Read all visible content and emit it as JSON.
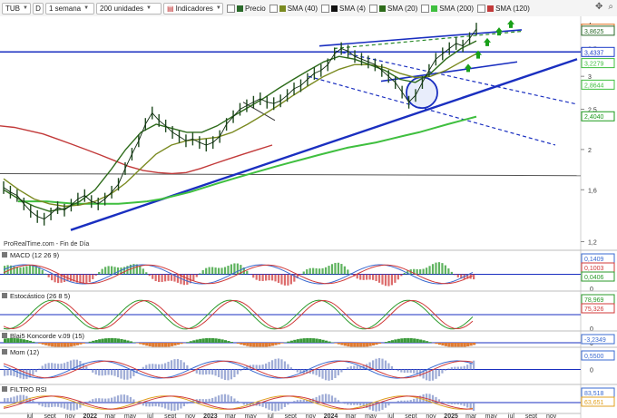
{
  "toolbar": {
    "ticker": "TUB",
    "timeframe_letter": "D",
    "period": "1 semana",
    "units": "200 unidades",
    "indicators": "Indicadores",
    "legend": [
      {
        "label": "Precio",
        "color": "#2a6a2a"
      },
      {
        "label": "SMA (40)",
        "color": "#7a8a20"
      },
      {
        "label": "SMA (4)",
        "color": "#111111"
      },
      {
        "label": "SMA (20)",
        "color": "#2d6b1a"
      },
      {
        "label": "SMA (200)",
        "color": "#3fbf3f"
      },
      {
        "label": "SMA (120)",
        "color": "#c23a3a"
      }
    ]
  },
  "chart_data": {
    "type": "line",
    "source_label": "ProRealTime.com - Fin de Día",
    "price_axis_ticks": [
      "4",
      "3,5",
      "3",
      "2,5",
      "2",
      "1,6",
      "1,2"
    ],
    "price_badges": [
      {
        "label": "3,905",
        "value": 3.905,
        "color": "#e07020"
      },
      {
        "label": "3,8625",
        "value": 3.8625,
        "color": "#2a6a2a"
      },
      {
        "label": "3,4337",
        "value": 3.4337,
        "color": "#1a3ac8"
      },
      {
        "label": "3,2279",
        "value": 3.2279,
        "color": "#3fbf3f"
      },
      {
        "label": "2,8644",
        "value": 2.8644,
        "color": "#3fbf3f"
      },
      {
        "label": "2,4040",
        "value": 2.404,
        "color": "#1a9a1a"
      }
    ],
    "x_axis_labels": [
      "jul",
      "sept",
      "nov",
      "2022",
      "mar",
      "may",
      "jul",
      "sept",
      "nov",
      "2023",
      "mar",
      "may",
      "jul",
      "sept",
      "nov",
      "2024",
      "mar",
      "may",
      "jul",
      "sept",
      "nov",
      "2025",
      "mar",
      "may",
      "jul",
      "sept",
      "nov"
    ],
    "price_series": [
      1.62,
      1.58,
      1.55,
      1.48,
      1.42,
      1.38,
      1.36,
      1.4,
      1.45,
      1.43,
      1.47,
      1.52,
      1.55,
      1.5,
      1.48,
      1.52,
      1.58,
      1.65,
      1.8,
      1.95,
      2.1,
      2.3,
      2.45,
      2.35,
      2.28,
      2.2,
      2.15,
      2.1,
      2.12,
      2.08,
      2.05,
      2.08,
      2.15,
      2.3,
      2.4,
      2.5,
      2.55,
      2.6,
      2.65,
      2.6,
      2.58,
      2.62,
      2.7,
      2.8,
      2.85,
      2.95,
      3.05,
      3.1,
      3.2,
      3.4,
      3.5,
      3.45,
      3.35,
      3.3,
      3.25,
      3.2,
      3.1,
      3.0,
      2.9,
      2.75,
      2.6,
      2.7,
      2.9,
      3.1,
      3.3,
      3.4,
      3.5,
      3.6,
      3.55,
      3.7,
      3.9
    ],
    "sma_series": [
      {
        "name": "SMA (200)",
        "color": "#3fbf3f",
        "values": [
          1.5,
          1.5,
          1.5,
          1.49,
          1.48,
          1.48,
          1.48,
          1.48,
          1.49,
          1.5,
          1.52,
          1.55,
          1.58,
          1.62,
          1.66,
          1.7,
          1.74,
          1.78,
          1.82,
          1.86,
          1.9,
          1.94,
          1.98,
          2.02,
          2.05,
          2.08,
          2.12,
          2.16,
          2.2,
          2.25,
          2.3,
          2.35,
          2.4
        ]
      },
      {
        "name": "SMA (120)",
        "color": "#c23a3a",
        "values": [
          2.28,
          2.26,
          2.22,
          2.18,
          2.12,
          2.06,
          2.0,
          1.94,
          1.88,
          1.82,
          1.78,
          1.76,
          1.75,
          1.76,
          1.8,
          1.85,
          1.9,
          1.95,
          2.0,
          2.05
        ]
      },
      {
        "name": "SMA (40)",
        "color": "#7a8a20",
        "values": [
          1.7,
          1.6,
          1.52,
          1.48,
          1.46,
          1.47,
          1.5,
          1.56,
          1.66,
          1.8,
          1.95,
          2.05,
          2.1,
          2.12,
          2.14,
          2.2,
          2.3,
          2.42,
          2.55,
          2.7,
          2.85,
          3.0,
          3.12,
          3.2,
          3.2,
          3.15,
          3.05,
          2.98,
          3.0,
          3.1,
          3.25,
          3.4
        ]
      },
      {
        "name": "SMA (20)",
        "color": "#2d6b1a",
        "values": [
          1.6,
          1.52,
          1.46,
          1.42,
          1.44,
          1.5,
          1.6,
          1.78,
          2.0,
          2.2,
          2.3,
          2.25,
          2.2,
          2.2,
          2.28,
          2.4,
          2.52,
          2.65,
          2.8,
          2.95,
          3.1,
          3.25,
          3.35,
          3.3,
          3.2,
          3.1,
          2.95,
          2.9,
          3.05,
          3.3,
          3.5,
          3.65
        ]
      }
    ],
    "panes": [
      {
        "title": "MACD (12 26 9)",
        "ticks": [
          "0,2",
          "0"
        ],
        "badges": [
          {
            "label": "0,1409",
            "color": "#3a6ad0"
          },
          {
            "label": "0,1003",
            "color": "#d03a3a"
          },
          {
            "label": "0,0406",
            "color": "#2a9a2a"
          }
        ]
      },
      {
        "title": "Estocástico (26 8 5)",
        "ticks": [
          "100",
          "0"
        ],
        "badges": [
          {
            "label": "78,969",
            "color": "#2a9a2a"
          },
          {
            "label": "75,326",
            "color": "#d03a3a"
          }
        ]
      },
      {
        "title": "Blai5 Koncorde v.09 (15)",
        "ticks": [
          "0"
        ],
        "badges": [
          {
            "label": "-3,2349",
            "color": "#3a6ad0"
          }
        ]
      },
      {
        "title": "Mom (12)",
        "ticks": [
          "0"
        ],
        "badges": [
          {
            "label": "0,5500",
            "color": "#3a6ad0"
          }
        ]
      },
      {
        "title": "FILTRO RSI",
        "ticks": [
          "0"
        ],
        "badges": [
          {
            "label": "83,518",
            "color": "#3a6ad0"
          },
          {
            "label": "63,651",
            "color": "#e0a020"
          }
        ]
      }
    ]
  }
}
